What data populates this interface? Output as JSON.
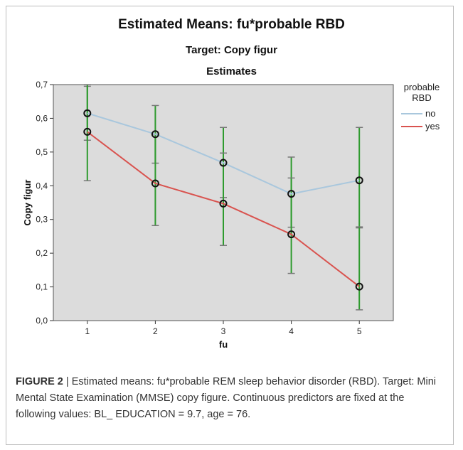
{
  "figure": {
    "title": "Estimated Means: fu*probable RBD",
    "subtitle": "Target: Copy figur",
    "panel_title": "Estimates",
    "caption_label": "FIGURE 2",
    "caption_text": " | Estimated means: fu*probable REM sleep behavior disorder (RBD). Target: Mini Mental State Examination (MMSE) copy figure. Continuous predictors are fixed at the following values: BL_ EDUCATION = 9.7, age = 76."
  },
  "chart_data": {
    "type": "line",
    "title": "Estimates",
    "xlabel": "fu",
    "ylabel": "Copy figur",
    "categories": [
      "1",
      "2",
      "3",
      "4",
      "5"
    ],
    "y_ticks": [
      "0,0",
      "0,1",
      "0,2",
      "0,3",
      "0,4",
      "0,5",
      "0,6",
      "0,7"
    ],
    "ylim": [
      0,
      0.7
    ],
    "grid": false,
    "legend_title": "probable RBD",
    "legend_position": "right",
    "series": [
      {
        "name": "no",
        "color": "#a9c7dd",
        "values": [
          0.615,
          0.553,
          0.468,
          0.376,
          0.416
        ],
        "ci_low": [
          0.535,
          0.467,
          0.365,
          0.277,
          0.275
        ],
        "ci_high": [
          0.695,
          0.638,
          0.573,
          0.485,
          0.573
        ]
      },
      {
        "name": "yes",
        "color": "#d9534f",
        "values": [
          0.56,
          0.407,
          0.347,
          0.256,
          0.101
        ],
        "ci_low": [
          0.415,
          0.282,
          0.223,
          0.14,
          0.032
        ],
        "ci_high": [
          0.7,
          0.553,
          0.497,
          0.423,
          0.278
        ]
      }
    ],
    "errorbar_color": "#2e9b2e",
    "plot_background": "#dcdcdc"
  }
}
